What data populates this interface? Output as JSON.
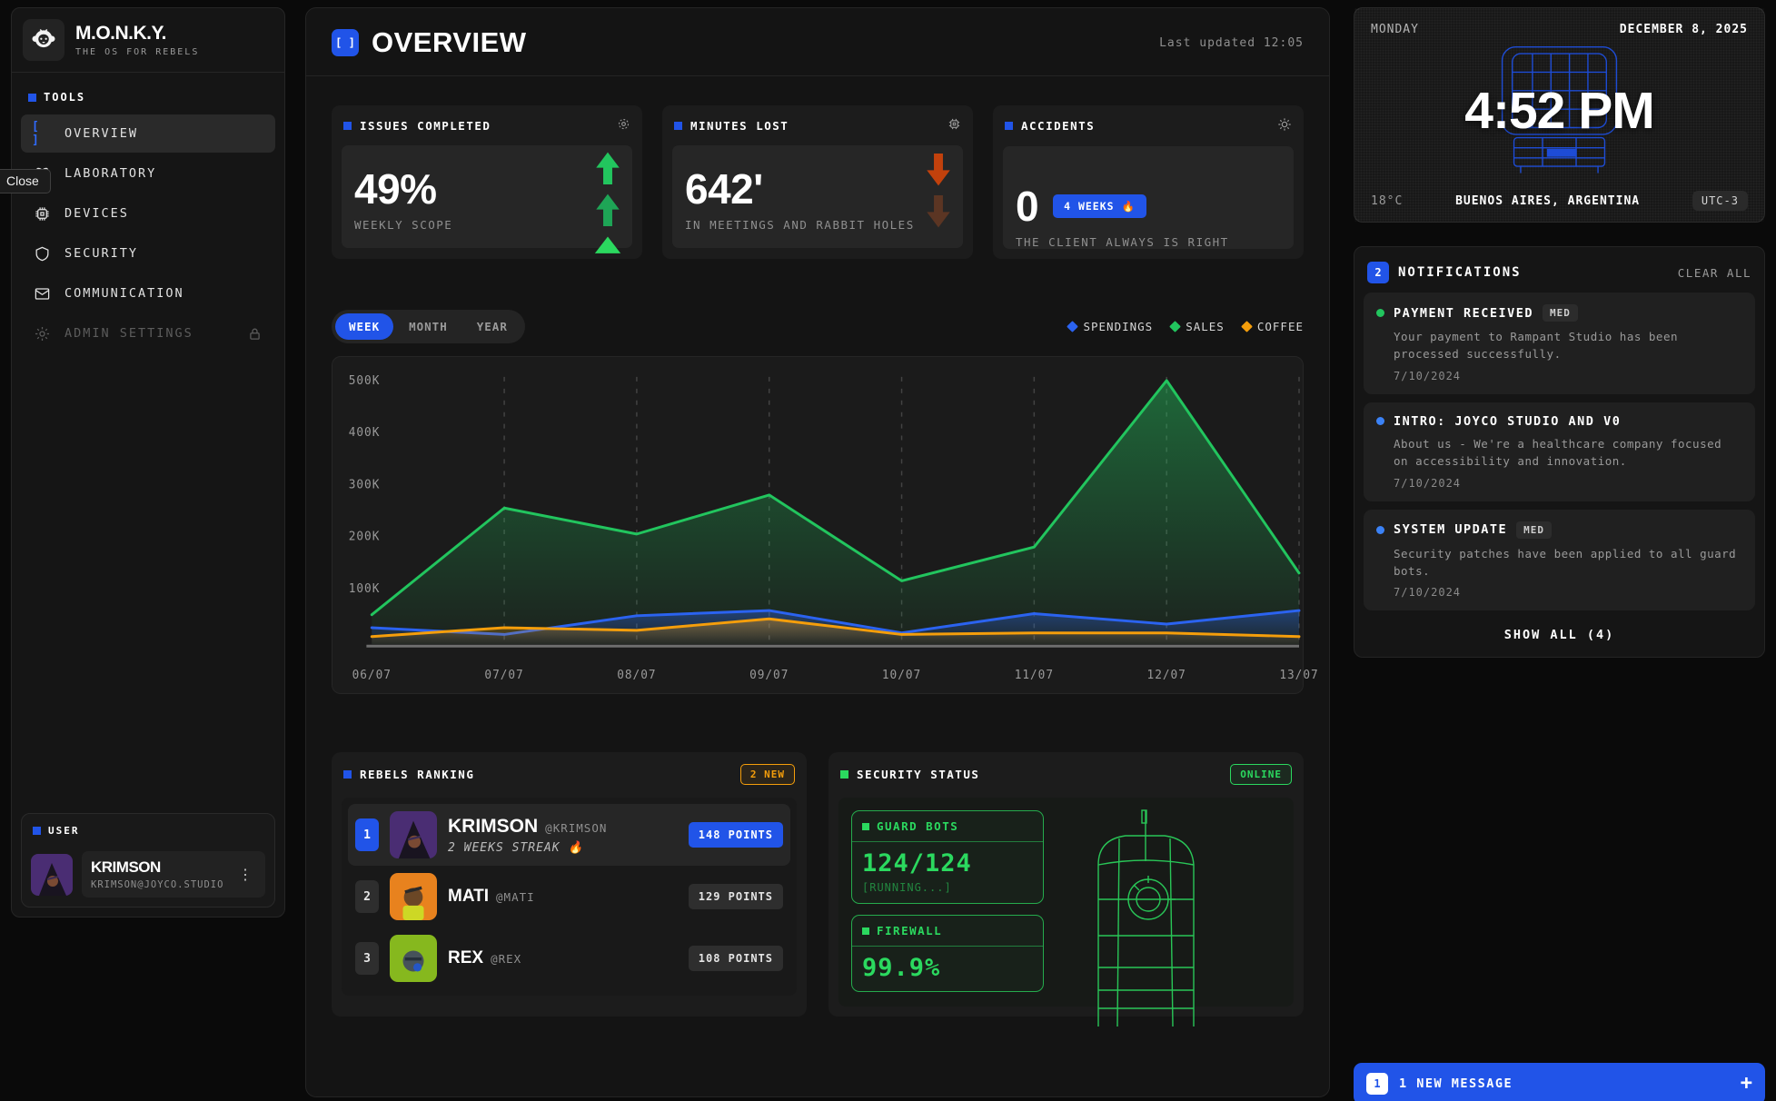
{
  "app": {
    "name": "M.O.N.K.Y.",
    "tagline": "THE OS FOR REBELS",
    "brackets_glyph": "[ ]"
  },
  "tooltip": {
    "label": "Close"
  },
  "colors": {
    "accent_blue": "#2154e8",
    "green": "#22c55e",
    "orange": "#f59e0b",
    "terminal_green": "#2bd95f",
    "alert_red": "#c2410c"
  },
  "sidebar": {
    "section_label": "TOOLS",
    "items": [
      {
        "label": "OVERVIEW",
        "icon": "brackets-icon"
      },
      {
        "label": "LABORATORY",
        "icon": "atom-icon"
      },
      {
        "label": "DEVICES",
        "icon": "chip-icon"
      },
      {
        "label": "SECURITY",
        "icon": "shield-icon"
      },
      {
        "label": "COMMUNICATION",
        "icon": "mail-icon"
      },
      {
        "label": "ADMIN SETTINGS",
        "icon": "gear-icon"
      }
    ],
    "user": {
      "section_label": "USER",
      "name": "KRIMSON",
      "email": "KRIMSON@JOYCO.STUDIO"
    }
  },
  "header": {
    "title": "OVERVIEW",
    "last_updated": "Last updated 12:05"
  },
  "stats": [
    {
      "title": "ISSUES COMPLETED",
      "value": "49%",
      "caption": "WEEKLY SCOPE",
      "trend": "up"
    },
    {
      "title": "MINUTES LOST",
      "value": "642'",
      "caption": "IN MEETINGS AND RABBIT HOLES",
      "trend": "down"
    },
    {
      "title": "ACCIDENTS",
      "value": "0",
      "badge": "4 WEEKS 🔥",
      "caption": "THE CLIENT ALWAYS IS RIGHT",
      "trend": "none"
    }
  ],
  "chart": {
    "tabs": [
      "WEEK",
      "MONTH",
      "YEAR"
    ],
    "active_tab": "WEEK",
    "legend": [
      {
        "label": "SPENDINGS",
        "color": "#2b63f0"
      },
      {
        "label": "SALES",
        "color": "#22c55e"
      },
      {
        "label": "COFFEE",
        "color": "#f59e0b"
      }
    ]
  },
  "chart_data": {
    "type": "area",
    "x": [
      "06/07",
      "07/07",
      "08/07",
      "09/07",
      "10/07",
      "11/07",
      "12/07",
      "13/07"
    ],
    "series": [
      {
        "name": "SALES",
        "color": "#22c55e",
        "values": [
          50000,
          255000,
          205000,
          280000,
          115000,
          180000,
          500000,
          130000
        ]
      },
      {
        "name": "SPENDINGS",
        "color": "#2b63f0",
        "values": [
          25000,
          12000,
          48000,
          58000,
          15000,
          52000,
          32000,
          58000
        ]
      },
      {
        "name": "COFFEE",
        "color": "#f59e0b",
        "values": [
          8000,
          25000,
          20000,
          42000,
          12000,
          15000,
          15000,
          8000
        ]
      }
    ],
    "ylim": [
      0,
      500000
    ],
    "yticks": [
      {
        "label": "100K",
        "value": 100000
      },
      {
        "label": "200K",
        "value": 200000
      },
      {
        "label": "300K",
        "value": 300000
      },
      {
        "label": "400K",
        "value": 400000
      },
      {
        "label": "500K",
        "value": 500000
      }
    ],
    "grid": "vertical-dashed",
    "legend_position": "top-right"
  },
  "ranking": {
    "title": "REBELS RANKING",
    "badge": "2 NEW",
    "rows": [
      {
        "rank": "1",
        "name": "KRIMSON",
        "handle": "@KRIMSON",
        "streak": "2 WEEKS STREAK 🔥",
        "points": "148 POINTS"
      },
      {
        "rank": "2",
        "name": "MATI",
        "handle": "@MATI",
        "streak": "",
        "points": "129 POINTS"
      },
      {
        "rank": "3",
        "name": "REX",
        "handle": "@REX",
        "streak": "",
        "points": "108 POINTS"
      }
    ]
  },
  "security": {
    "title": "SECURITY STATUS",
    "badge": "ONLINE",
    "guard_bots": {
      "label": "GUARD BOTS",
      "value": "124/124",
      "status": "[RUNNING...]"
    },
    "firewall": {
      "label": "FIREWALL",
      "value": "99.9%"
    }
  },
  "clock": {
    "day": "MONDAY",
    "date": "DECEMBER 8, 2025",
    "time": "4:52 PM",
    "temperature": "18°C",
    "location": "BUENOS AIRES, ARGENTINA",
    "utc": "UTC-3"
  },
  "notifications": {
    "count": "2",
    "title": "NOTIFICATIONS",
    "clear_all": "CLEAR ALL",
    "show_all": "SHOW ALL (4)",
    "items": [
      {
        "title": "PAYMENT RECEIVED",
        "badge": "MED",
        "body": "Your payment to Rampant Studio has been processed successfully.",
        "date": "7/10/2024",
        "dot_color": "#22c55e"
      },
      {
        "title": "INTRO: JOYCO STUDIO AND V0",
        "badge": "",
        "body": "About us - We're a healthcare company focused on accessibility and innovation.",
        "date": "7/10/2024",
        "dot_color": "#3b82f6"
      },
      {
        "title": "SYSTEM UPDATE",
        "badge": "MED",
        "body": "Security patches have been applied to all guard bots.",
        "date": "7/10/2024",
        "dot_color": "#3b82f6"
      }
    ]
  },
  "message_bar": {
    "count": "1",
    "text": "1 NEW MESSAGE",
    "action": "+"
  }
}
